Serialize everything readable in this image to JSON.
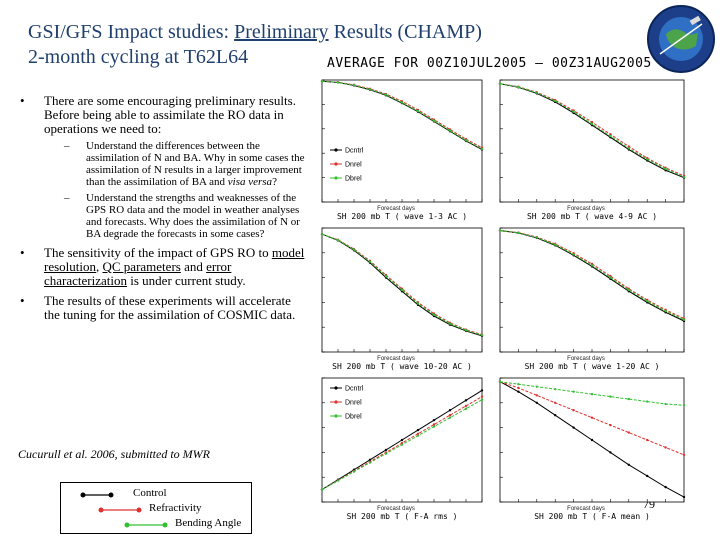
{
  "title": {
    "part1": "GSI/GFS Impact studies: ",
    "part2_underlined": "Preliminary",
    "part3": " Results (CHAMP)",
    "line2": "2-month cycling at T62L64"
  },
  "banner": "AVERAGE FOR 00Z10JUL2005 – 00Z31AUG2005",
  "bullets": {
    "b1": "There are some encouraging preliminary results. Before being able to assimilate the RO data in operations we need to:",
    "b1_sub1": "Understand the differences between the assimilation of N and BA. Why in some cases the assimilation of N results in a larger improvement than the assimilation of BA and ",
    "b1_sub1_italic": "visa versa",
    "b1_sub1_end": "?",
    "b1_sub2": "Understand the strengths and weaknesses of the GPS RO data and the model in weather analyses and forecasts. Why  does the assimilation of N or BA degrade the forecasts in some cases?",
    "b2_a": "The sensitivity of the impact of GPS RO to ",
    "b2_u1": "model resolution",
    "b2_b": ", ",
    "b2_u2": "QC parameters",
    "b2_c": " and ",
    "b2_u3": "error characterization",
    "b2_d": " is under current study.",
    "b3": "The results of these experiments will accelerate the tuning for the assimilation of COSMIC data."
  },
  "citation": "Cucurull et al. 2006, submitted to MWR",
  "legend": {
    "control": "Control",
    "refractivity": "Refractivity",
    "bending": "Bending Angle"
  },
  "page_number": "79",
  "colors": {
    "title": "#1f3f6e",
    "control": "#000000",
    "refractivity": "#e03030",
    "bending": "#30c030"
  },
  "chart_data": [
    {
      "type": "line",
      "title": "SH 200 mb T ( wave 1-3 AC )",
      "xlabel": "Forecast days",
      "legend": [
        "Dcntrl",
        "Dnrel",
        "Dbrel"
      ],
      "x": [
        0,
        1,
        2,
        3,
        4,
        5,
        6,
        7,
        8,
        9,
        10
      ],
      "ylim": [
        0,
        1
      ],
      "series": [
        {
          "values": [
            0.99,
            0.98,
            0.955,
            0.92,
            0.875,
            0.81,
            0.74,
            0.66,
            0.58,
            0.5,
            0.43
          ]
        },
        {
          "values": [
            0.99,
            0.982,
            0.96,
            0.928,
            0.885,
            0.825,
            0.755,
            0.675,
            0.595,
            0.515,
            0.445
          ]
        },
        {
          "values": [
            0.99,
            0.98,
            0.957,
            0.923,
            0.879,
            0.815,
            0.745,
            0.665,
            0.585,
            0.505,
            0.435
          ]
        }
      ]
    },
    {
      "type": "line",
      "title": "SH 200 mb T ( wave 4-9 AC )",
      "xlabel": "Forecast days",
      "x": [
        0,
        1,
        2,
        3,
        4,
        5,
        6,
        7,
        8,
        9,
        10
      ],
      "ylim": [
        0,
        1
      ],
      "series": [
        {
          "values": [
            0.97,
            0.94,
            0.89,
            0.82,
            0.73,
            0.63,
            0.53,
            0.43,
            0.34,
            0.26,
            0.2
          ]
        },
        {
          "values": [
            0.97,
            0.945,
            0.9,
            0.835,
            0.75,
            0.655,
            0.555,
            0.455,
            0.36,
            0.28,
            0.215
          ]
        },
        {
          "values": [
            0.97,
            0.942,
            0.895,
            0.828,
            0.74,
            0.64,
            0.54,
            0.44,
            0.35,
            0.27,
            0.205
          ]
        }
      ]
    },
    {
      "type": "line",
      "title": "SH 200 mb T ( wave 10-20 AC )",
      "xlabel": "Forecast days",
      "x": [
        0,
        1,
        2,
        3,
        4,
        5,
        6,
        7,
        8,
        9,
        10
      ],
      "ylim": [
        0,
        1
      ],
      "series": [
        {
          "values": [
            0.95,
            0.9,
            0.82,
            0.72,
            0.6,
            0.49,
            0.38,
            0.29,
            0.22,
            0.17,
            0.13
          ]
        },
        {
          "values": [
            0.95,
            0.905,
            0.83,
            0.735,
            0.62,
            0.51,
            0.4,
            0.31,
            0.235,
            0.18,
            0.14
          ]
        },
        {
          "values": [
            0.95,
            0.902,
            0.825,
            0.728,
            0.61,
            0.5,
            0.39,
            0.3,
            0.228,
            0.175,
            0.135
          ]
        }
      ]
    },
    {
      "type": "line",
      "title": "SH 200 mb T ( wave 1-20 AC )",
      "xlabel": "Forecast days",
      "x": [
        0,
        1,
        2,
        3,
        4,
        5,
        6,
        7,
        8,
        9,
        10
      ],
      "ylim": [
        0,
        1
      ],
      "series": [
        {
          "values": [
            0.98,
            0.96,
            0.92,
            0.86,
            0.78,
            0.69,
            0.59,
            0.49,
            0.4,
            0.32,
            0.25
          ]
        },
        {
          "values": [
            0.98,
            0.963,
            0.927,
            0.872,
            0.797,
            0.71,
            0.612,
            0.51,
            0.42,
            0.34,
            0.27
          ]
        },
        {
          "values": [
            0.98,
            0.961,
            0.923,
            0.865,
            0.787,
            0.698,
            0.6,
            0.5,
            0.41,
            0.33,
            0.26
          ]
        }
      ]
    },
    {
      "type": "line",
      "title": "SH 200 mb T ( F-A rms )",
      "xlabel": "Forecast days",
      "legend": [
        "Dcntrl",
        "Dnrel",
        "Dbrel"
      ],
      "x": [
        0,
        1,
        2,
        3,
        4,
        5,
        6,
        7,
        8,
        9,
        10
      ],
      "ylim": [
        0,
        1
      ],
      "series": [
        {
          "values": [
            0.1,
            0.18,
            0.26,
            0.34,
            0.42,
            0.5,
            0.58,
            0.66,
            0.74,
            0.82,
            0.9
          ]
        },
        {
          "values": [
            0.1,
            0.175,
            0.25,
            0.325,
            0.4,
            0.475,
            0.55,
            0.625,
            0.7,
            0.775,
            0.85
          ]
        },
        {
          "values": [
            0.1,
            0.172,
            0.245,
            0.318,
            0.39,
            0.462,
            0.535,
            0.608,
            0.68,
            0.752,
            0.825
          ]
        }
      ]
    },
    {
      "type": "line",
      "title": "SH 200 mb T ( F-A mean )",
      "xlabel": "Forecast days",
      "x": [
        0,
        1,
        2,
        3,
        4,
        5,
        6,
        7,
        8,
        9,
        10
      ],
      "ylim": [
        0,
        1
      ],
      "series": [
        {
          "values": [
            0.97,
            0.89,
            0.8,
            0.7,
            0.6,
            0.5,
            0.4,
            0.3,
            0.21,
            0.12,
            0.04
          ]
        },
        {
          "values": [
            0.97,
            0.92,
            0.86,
            0.8,
            0.74,
            0.68,
            0.62,
            0.56,
            0.5,
            0.44,
            0.38
          ]
        },
        {
          "values": [
            0.97,
            0.95,
            0.93,
            0.91,
            0.89,
            0.87,
            0.85,
            0.83,
            0.81,
            0.79,
            0.78
          ]
        }
      ]
    }
  ]
}
